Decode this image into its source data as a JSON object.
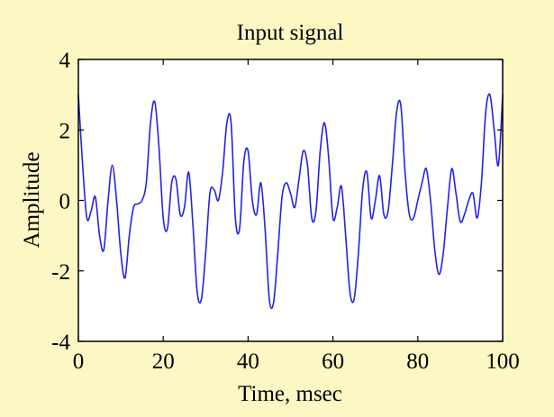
{
  "colors": {
    "figure_background": "#fdf8c3",
    "plot_background": "#ffffff",
    "line": "#2323e6",
    "axis": "#000000"
  },
  "chart_data": {
    "type": "line",
    "title": "Input signal",
    "xlabel": "Time, msec",
    "ylabel": "Amplitude",
    "xlim": [
      0,
      100
    ],
    "ylim": [
      -4,
      4
    ],
    "grid": false,
    "xticks": [
      0,
      20,
      40,
      60,
      80,
      100
    ],
    "xtick_labels": [
      "0",
      "20",
      "40",
      "60",
      "80",
      "100"
    ],
    "yticks": [
      -4,
      -2,
      0,
      2,
      4
    ],
    "ytick_labels": [
      "-4",
      "-2",
      "0",
      "2",
      "4"
    ],
    "series": [
      {
        "x": [
          0,
          1,
          2,
          3,
          4,
          5,
          6,
          7,
          8,
          9,
          10,
          11,
          12,
          13,
          14,
          15,
          16,
          17,
          18,
          19,
          20,
          21,
          22,
          23,
          24,
          25,
          26,
          27,
          28,
          29,
          30,
          31,
          32,
          33,
          34,
          35,
          36,
          37,
          38,
          39,
          40,
          41,
          42,
          43,
          44,
          45,
          46,
          47,
          48,
          49,
          50,
          51,
          52,
          53,
          54,
          55,
          56,
          57,
          58,
          59,
          60,
          61,
          62,
          63,
          64,
          65,
          66,
          67,
          68,
          69,
          70,
          71,
          72,
          73,
          74,
          75,
          76,
          77,
          78,
          79,
          80,
          81,
          82,
          83,
          84,
          85,
          86,
          87,
          88,
          89,
          90,
          91,
          92,
          93,
          94,
          95,
          96,
          97,
          98,
          99,
          100
        ],
        "y": [
          3.0,
          1.0,
          -0.5,
          -0.3,
          0.1,
          -1.0,
          -1.4,
          0.0,
          1.0,
          0.0,
          -1.5,
          -2.2,
          -1.0,
          -0.2,
          -0.1,
          0.0,
          0.5,
          2.2,
          2.8,
          1.5,
          -0.5,
          -0.8,
          0.5,
          0.6,
          -0.4,
          -0.2,
          0.8,
          -0.7,
          -2.6,
          -2.8,
          -1.5,
          0.2,
          0.3,
          0.0,
          0.8,
          2.2,
          2.2,
          -0.5,
          -0.8,
          1.1,
          1.4,
          0.0,
          -0.4,
          0.5,
          -0.8,
          -2.8,
          -2.9,
          -1.5,
          0.1,
          0.5,
          0.2,
          -0.2,
          0.6,
          1.4,
          1.0,
          -0.5,
          -0.3,
          1.4,
          2.2,
          1.2,
          -0.5,
          -0.2,
          0.4,
          -1.0,
          -2.6,
          -2.8,
          -1.5,
          0.3,
          0.8,
          -0.5,
          0.0,
          0.7,
          -0.4,
          -0.3,
          1.0,
          2.5,
          2.7,
          0.8,
          -0.4,
          -0.5,
          0.0,
          0.5,
          0.9,
          0.0,
          -1.4,
          -2.1,
          -1.5,
          -0.2,
          0.9,
          0.2,
          -0.6,
          -0.4,
          0.0,
          0.2,
          -0.5,
          0.5,
          2.5,
          3.0,
          2.0,
          1.0,
          3.0
        ]
      }
    ]
  }
}
